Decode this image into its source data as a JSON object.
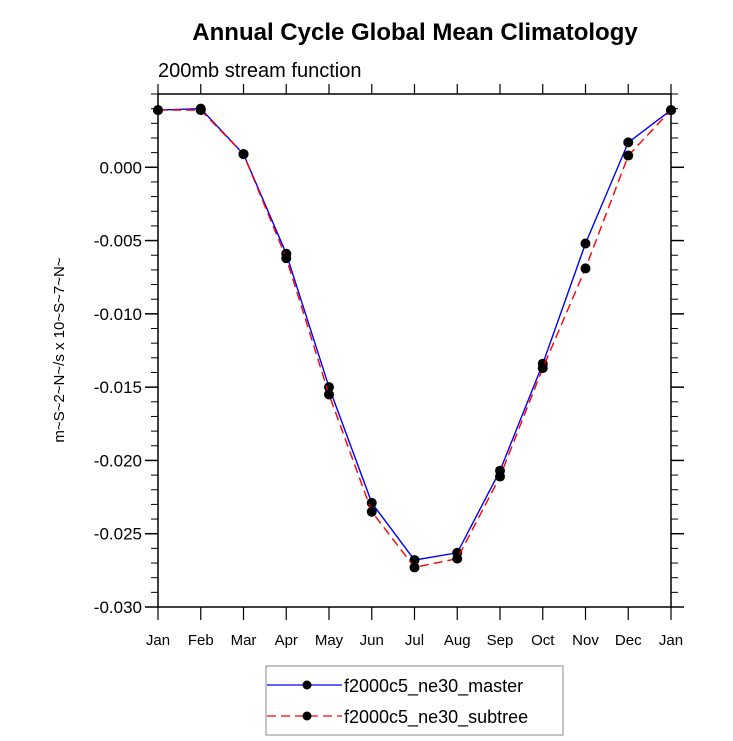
{
  "chart_data": {
    "type": "line",
    "title": "Annual Cycle Global Mean Climatology",
    "subtitle": "200mb stream function",
    "xlabel": "",
    "ylabel": "m~S~2~N~/s x 10~S~7~N~",
    "categories": [
      "Jan",
      "Feb",
      "Mar",
      "Apr",
      "May",
      "Jun",
      "Jul",
      "Aug",
      "Sep",
      "Oct",
      "Nov",
      "Dec",
      "Jan"
    ],
    "ylim": [
      -0.03,
      0.005
    ],
    "yticks": [
      0.0,
      -0.005,
      -0.01,
      -0.015,
      -0.02,
      -0.025,
      -0.03
    ],
    "ytick_labels": [
      "0.000",
      "-0.005",
      "-0.010",
      "-0.015",
      "-0.020",
      "-0.025",
      "-0.030"
    ],
    "y_minor_step": 0.001,
    "grid": false,
    "legend_position": "bottom-center",
    "series": [
      {
        "name": "f2000c5_ne30_master",
        "color": "#0000ff",
        "dash": "solid",
        "marker": "filled-circle",
        "values": [
          0.0039,
          0.004,
          0.0009,
          -0.0059,
          -0.015,
          -0.0229,
          -0.0268,
          -0.0263,
          -0.0207,
          -0.0134,
          -0.0052,
          0.0017,
          0.0039
        ]
      },
      {
        "name": "f2000c5_ne30_subtree",
        "color": "#ff0000",
        "dash": "dashed",
        "marker": "filled-circle",
        "values": [
          0.0039,
          0.0039,
          0.0009,
          -0.0062,
          -0.0155,
          -0.0235,
          -0.0273,
          -0.0267,
          -0.0211,
          -0.0137,
          -0.0069,
          0.0008,
          0.0039
        ]
      }
    ]
  }
}
